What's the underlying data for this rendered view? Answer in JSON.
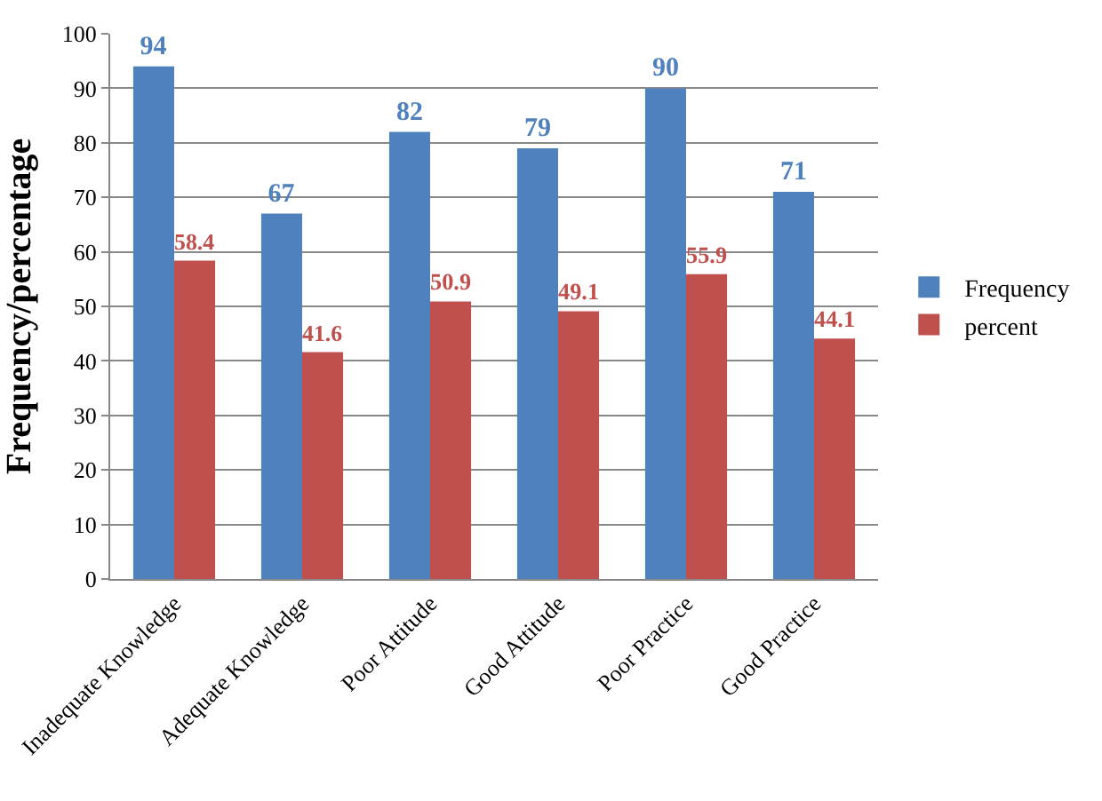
{
  "chart_data": {
    "type": "bar",
    "ylabel": "Frequency/percentage",
    "categories": [
      "Inadequate Knowledge",
      "Adequate Knowledge",
      "Poor Attitude",
      "Good Attitude",
      "Poor Practice",
      "Good Practice"
    ],
    "series": [
      {
        "name": "Frequency",
        "color": "#4f81bd",
        "values": [
          94,
          67,
          82,
          79,
          90,
          71
        ]
      },
      {
        "name": "percent",
        "color": "#c0504d",
        "values": [
          58.4,
          41.6,
          50.9,
          49.1,
          55.9,
          44.1
        ]
      }
    ],
    "ylim": [
      0,
      100
    ],
    "yticks": [
      0,
      10,
      20,
      30,
      40,
      50,
      60,
      70,
      80,
      90,
      100
    ],
    "grid": "y",
    "legend": "right",
    "data_labels": true
  }
}
